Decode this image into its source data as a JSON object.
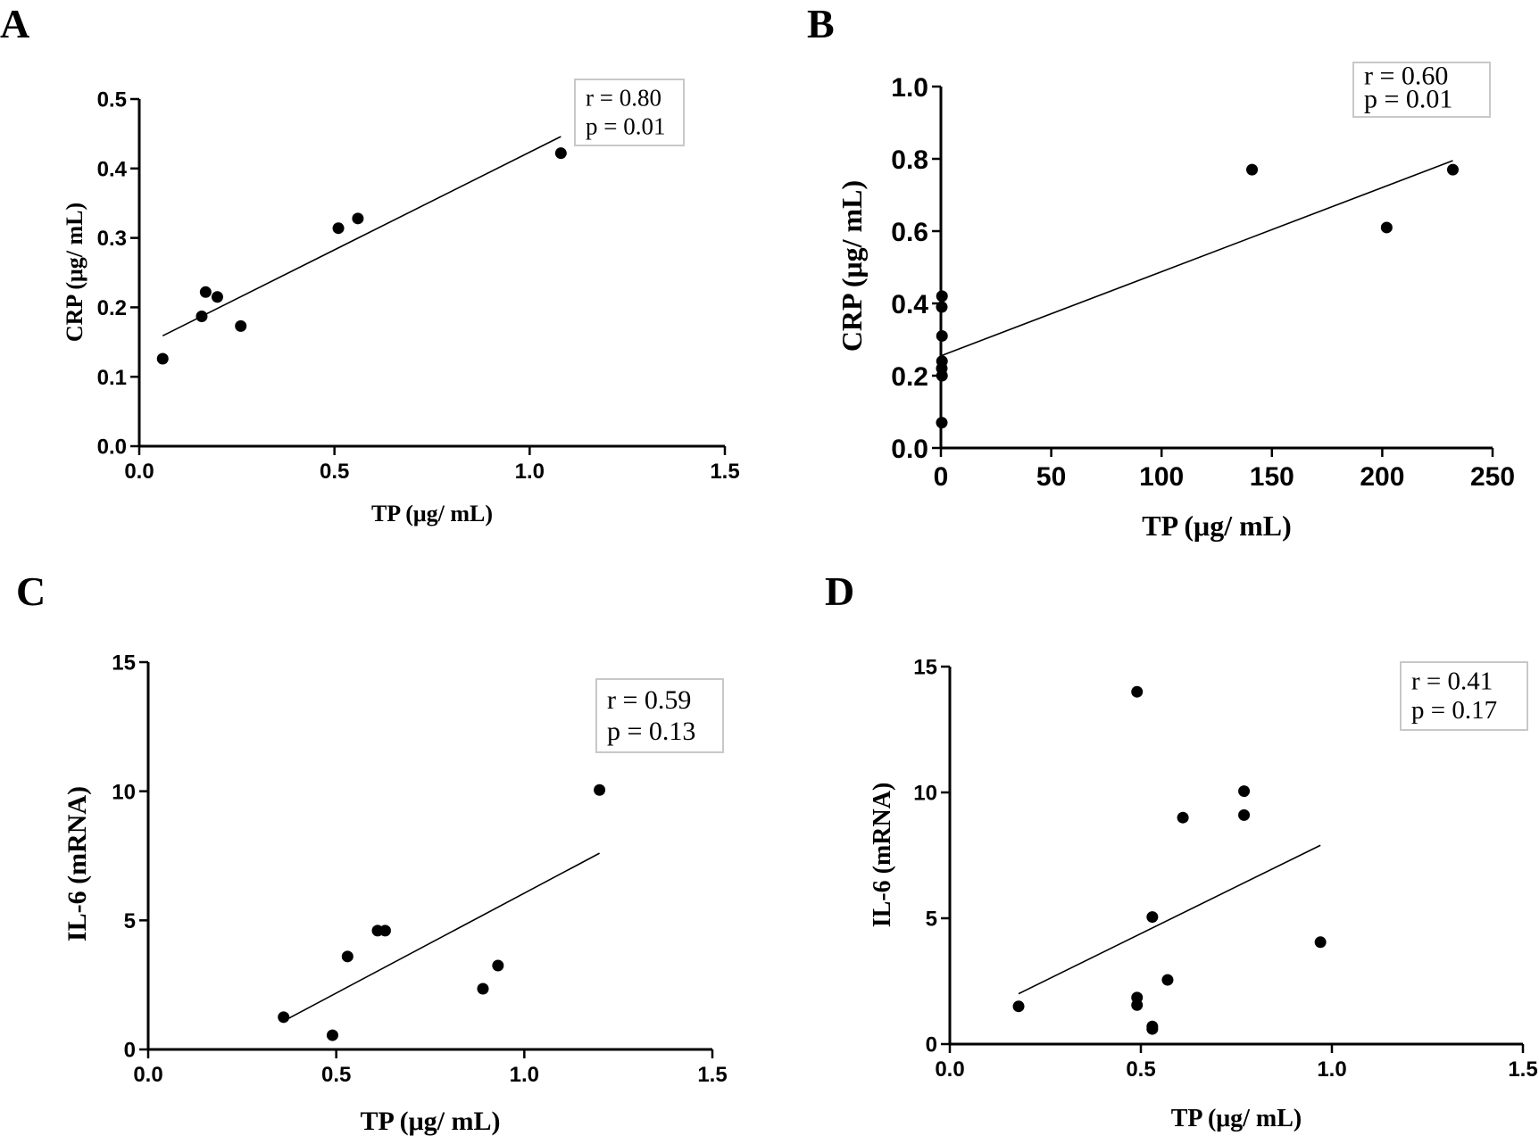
{
  "chart_data": [
    {
      "type": "scatter",
      "panel": "A",
      "xlabel": "TP (μg/ mL)",
      "ylabel": "CRP (μg/ mL)",
      "xlim": [
        0,
        1.5
      ],
      "ylim": [
        0,
        0.5
      ],
      "xticks": [
        "0.0",
        "0.5",
        "1.0",
        "1.5"
      ],
      "yticks": [
        "0.0",
        "0.1",
        "0.2",
        "0.3",
        "0.4",
        "0.5"
      ],
      "points": [
        {
          "x": 0.06,
          "y": 0.126
        },
        {
          "x": 0.16,
          "y": 0.187
        },
        {
          "x": 0.17,
          "y": 0.222
        },
        {
          "x": 0.2,
          "y": 0.215
        },
        {
          "x": 0.26,
          "y": 0.173
        },
        {
          "x": 0.51,
          "y": 0.314
        },
        {
          "x": 0.56,
          "y": 0.328
        },
        {
          "x": 1.08,
          "y": 0.422
        }
      ],
      "fit": [
        {
          "x": 0.06,
          "y": 0.159
        },
        {
          "x": 1.08,
          "y": 0.446
        }
      ],
      "stats": [
        "r = 0.80",
        "p = 0.01"
      ]
    },
    {
      "type": "scatter",
      "panel": "B",
      "xlabel": "TP (μg/ mL)",
      "ylabel": "CRP (μg/ mL)",
      "xlim": [
        0,
        250
      ],
      "ylim": [
        0,
        1.0
      ],
      "xticks": [
        "0",
        "50",
        "100",
        "150",
        "200",
        "250"
      ],
      "yticks": [
        "0.0",
        "0.2",
        "0.4",
        "0.6",
        "0.8",
        "1.0"
      ],
      "points": [
        {
          "x": 0.5,
          "y": 0.42
        },
        {
          "x": 0.4,
          "y": 0.39
        },
        {
          "x": 0.5,
          "y": 0.31
        },
        {
          "x": 0.5,
          "y": 0.24
        },
        {
          "x": 0.4,
          "y": 0.22
        },
        {
          "x": 0.5,
          "y": 0.2
        },
        {
          "x": 0.4,
          "y": 0.07
        },
        {
          "x": 141,
          "y": 0.77
        },
        {
          "x": 202,
          "y": 0.61
        },
        {
          "x": 232,
          "y": 0.77
        }
      ],
      "fit": [
        {
          "x": 0,
          "y": 0.255
        },
        {
          "x": 232,
          "y": 0.795
        }
      ],
      "stats": [
        "r = 0.60",
        "p = 0.01"
      ]
    },
    {
      "type": "scatter",
      "panel": "C",
      "xlabel": "TP (μg/ mL)",
      "ylabel": "IL-6 (mRNA)",
      "xlim": [
        0,
        1.5
      ],
      "ylim": [
        0,
        15
      ],
      "xticks": [
        "0.0",
        "0.5",
        "1.0",
        "1.5"
      ],
      "yticks": [
        "0",
        "5",
        "10",
        "15"
      ],
      "points": [
        {
          "x": 0.36,
          "y": 1.25
        },
        {
          "x": 0.49,
          "y": 0.55
        },
        {
          "x": 0.53,
          "y": 3.6
        },
        {
          "x": 0.61,
          "y": 4.6
        },
        {
          "x": 0.63,
          "y": 4.6
        },
        {
          "x": 0.89,
          "y": 2.35
        },
        {
          "x": 0.93,
          "y": 3.25
        },
        {
          "x": 1.2,
          "y": 10.05
        }
      ],
      "fit": [
        {
          "x": 0.36,
          "y": 1.1
        },
        {
          "x": 1.2,
          "y": 7.6
        }
      ],
      "stats": [
        "r = 0.59",
        "p = 0.13"
      ]
    },
    {
      "type": "scatter",
      "panel": "D",
      "xlabel": "TP (μg/ mL)",
      "ylabel": "IL-6 (mRNA)",
      "xlim": [
        0,
        1.5
      ],
      "ylim": [
        0,
        15
      ],
      "xticks": [
        "0.0",
        "0.5",
        "1.0",
        "1.5"
      ],
      "yticks": [
        "0",
        "5",
        "10",
        "15"
      ],
      "points": [
        {
          "x": 0.18,
          "y": 1.5
        },
        {
          "x": 0.49,
          "y": 14.0
        },
        {
          "x": 0.49,
          "y": 1.85
        },
        {
          "x": 0.49,
          "y": 1.55
        },
        {
          "x": 0.53,
          "y": 5.05
        },
        {
          "x": 0.53,
          "y": 0.7
        },
        {
          "x": 0.53,
          "y": 0.6
        },
        {
          "x": 0.57,
          "y": 2.55
        },
        {
          "x": 0.61,
          "y": 9.0
        },
        {
          "x": 0.77,
          "y": 10.05
        },
        {
          "x": 0.77,
          "y": 9.1
        },
        {
          "x": 0.97,
          "y": 4.05
        }
      ],
      "fit": [
        {
          "x": 0.18,
          "y": 2.0
        },
        {
          "x": 0.97,
          "y": 7.9
        }
      ],
      "stats": [
        "r = 0.41",
        "p = 0.17"
      ]
    }
  ]
}
